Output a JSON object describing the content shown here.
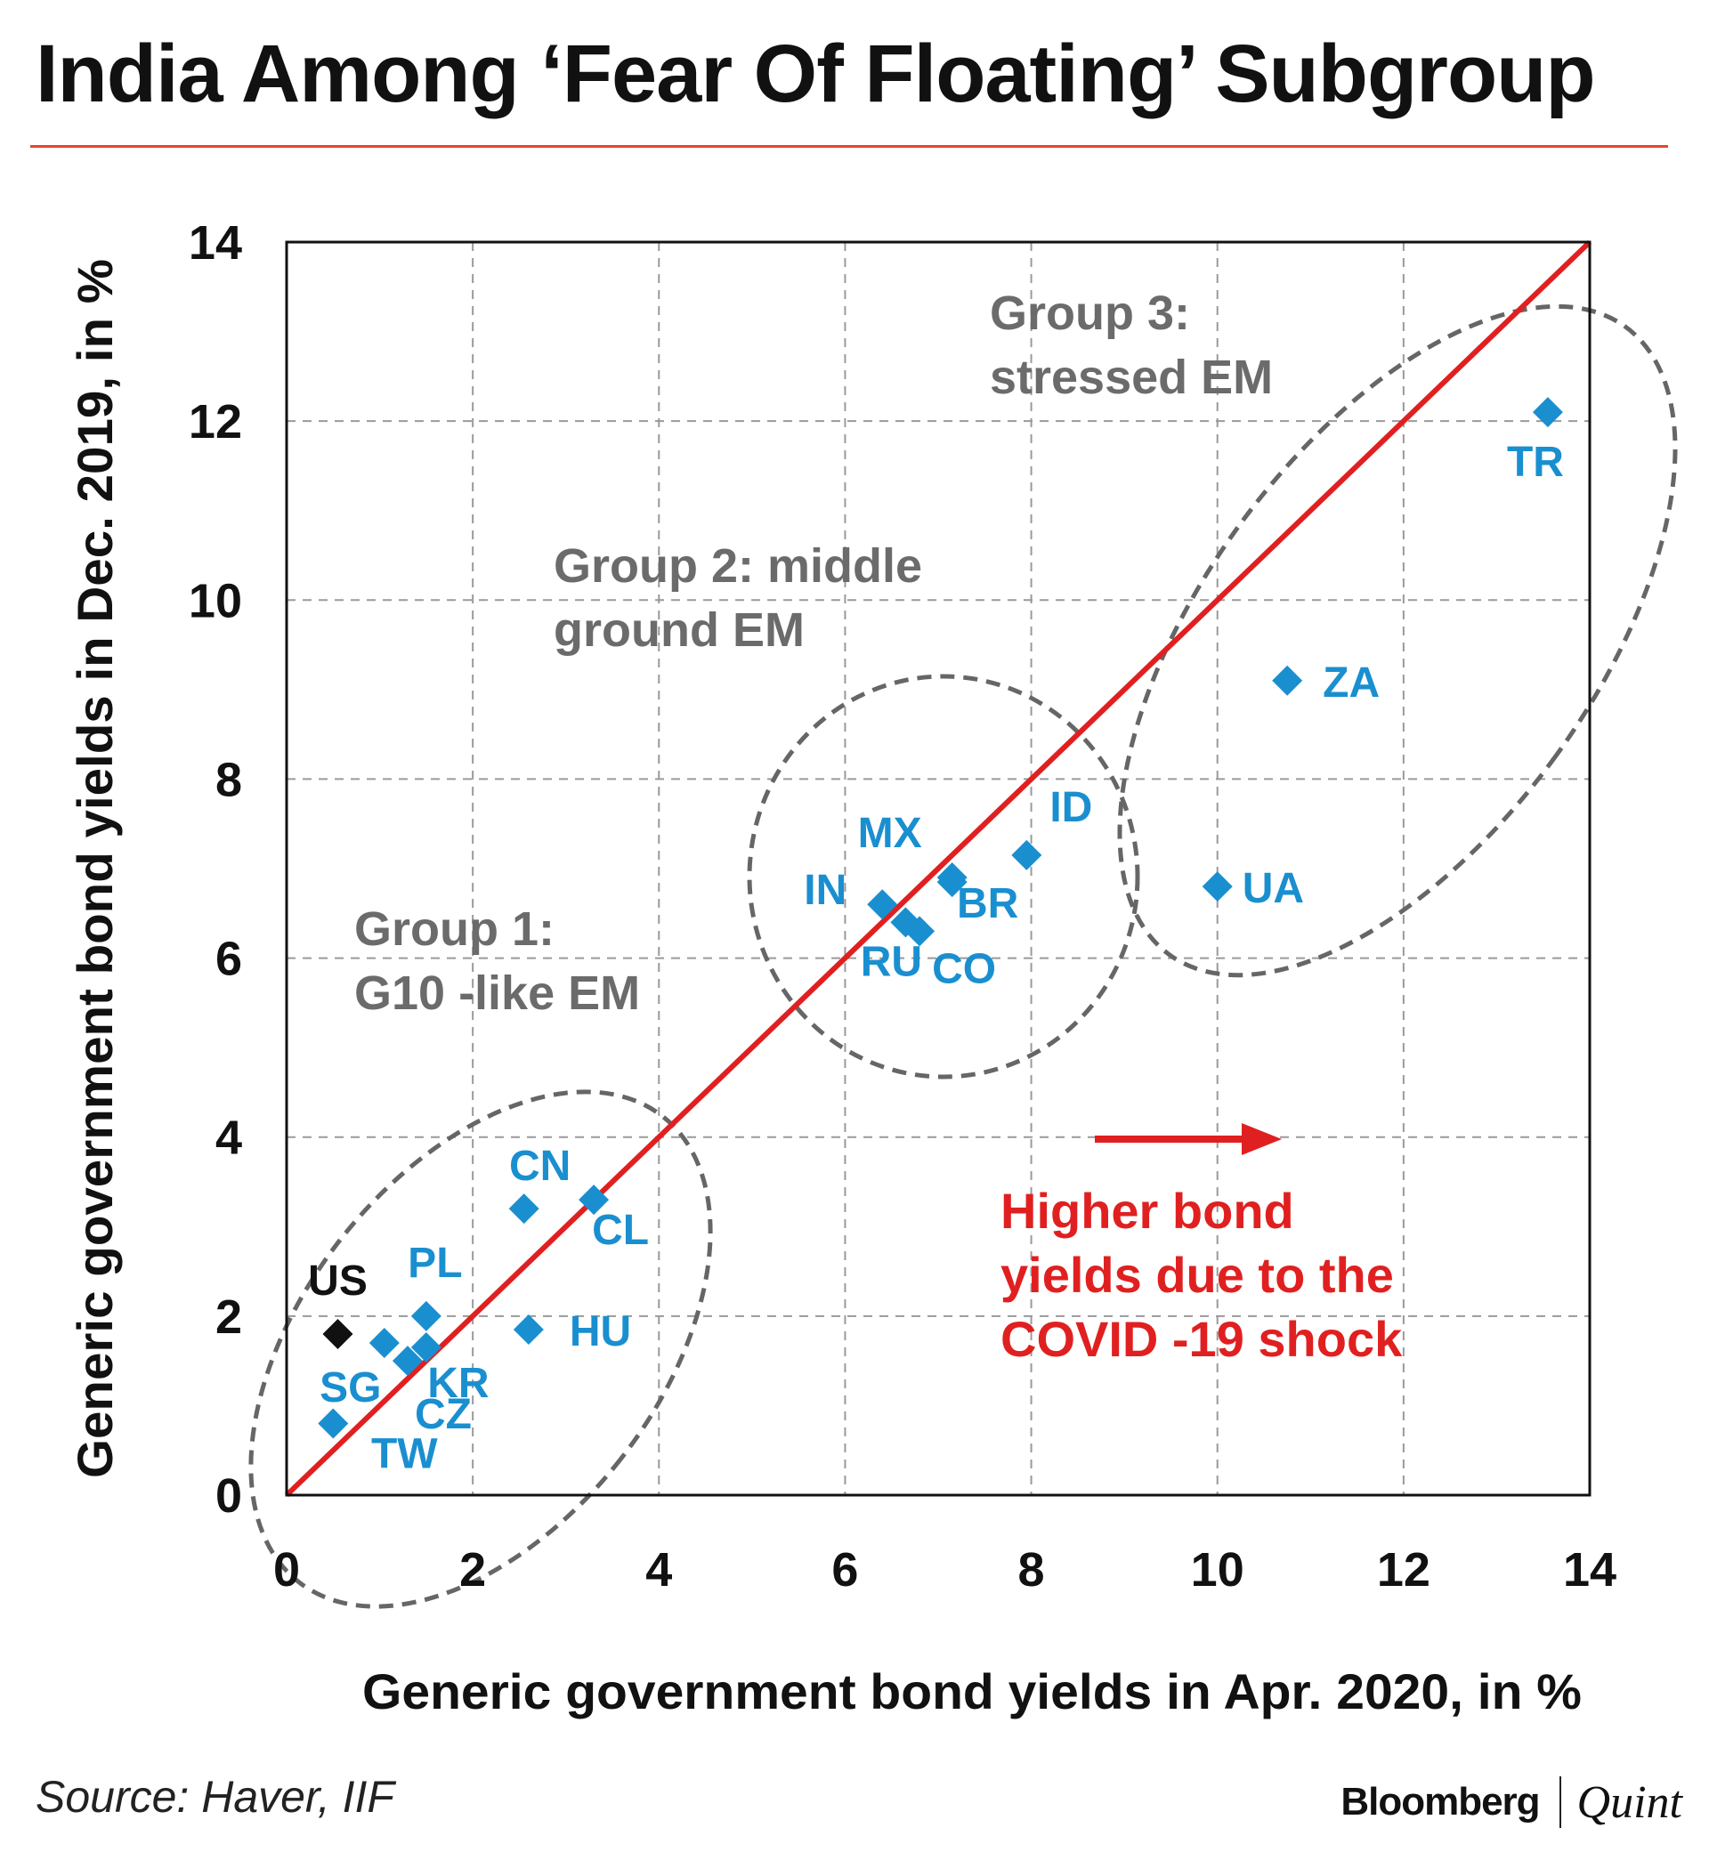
{
  "title": "India Among ‘Fear Of Floating’ Subgroup",
  "source": "Source: Haver, IIF",
  "brand": {
    "primary": "Bloomberg",
    "secondary": "Quint"
  },
  "colors": {
    "point": "#1a8fd0",
    "point_label": "#1a8fd0",
    "us_point": "#111111",
    "diagonal": "#e02020",
    "group_outline": "#666666",
    "group_label": "#6b6b6b",
    "annotation": "#e02020",
    "title_rule": "#e8432d"
  },
  "chart_data": {
    "type": "scatter",
    "title": "India Among ‘Fear Of Floating’ Subgroup",
    "xlabel": "Generic government bond yields in Apr. 2020, in %",
    "ylabel": "Generic government bond yields in Dec. 2019, in %",
    "xlim": [
      0,
      14
    ],
    "ylim": [
      0,
      14
    ],
    "xticks": [
      "0",
      "2",
      "4",
      "6",
      "8",
      "10",
      "12",
      "14"
    ],
    "yticks": [
      "0",
      "2",
      "4",
      "6",
      "8",
      "10",
      "12",
      "14"
    ],
    "grid": true,
    "reference_line": {
      "from": [
        0,
        0
      ],
      "to": [
        14,
        14
      ],
      "label": "45-degree line"
    },
    "points": [
      {
        "label": "US",
        "x": 0.55,
        "y": 1.8,
        "highlight": true
      },
      {
        "label": "SG",
        "x": 1.05,
        "y": 1.7
      },
      {
        "label": "KR",
        "x": 1.5,
        "y": 1.65
      },
      {
        "label": "CZ",
        "x": 1.3,
        "y": 1.5
      },
      {
        "label": "PL",
        "x": 1.5,
        "y": 2.0
      },
      {
        "label": "TW",
        "x": 0.5,
        "y": 0.8
      },
      {
        "label": "HU",
        "x": 2.6,
        "y": 1.85
      },
      {
        "label": "CN",
        "x": 2.55,
        "y": 3.2
      },
      {
        "label": "CL",
        "x": 3.3,
        "y": 3.3
      },
      {
        "label": "IN",
        "x": 6.4,
        "y": 6.6
      },
      {
        "label": "MX",
        "x": 7.15,
        "y": 6.9
      },
      {
        "label": "RU",
        "x": 6.65,
        "y": 6.4
      },
      {
        "label": "CO",
        "x": 6.8,
        "y": 6.3
      },
      {
        "label": "BR",
        "x": 7.15,
        "y": 6.85
      },
      {
        "label": "ID",
        "x": 7.95,
        "y": 7.15
      },
      {
        "label": "ZA",
        "x": 10.75,
        "y": 9.1
      },
      {
        "label": "UA",
        "x": 10.0,
        "y": 6.8
      },
      {
        "label": "TR",
        "x": 13.55,
        "y": 12.1
      }
    ],
    "groups": [
      {
        "name": "group-1",
        "label_lines": [
          "Group 1:",
          "G10 -like  EM"
        ]
      },
      {
        "name": "group-2",
        "label_lines": [
          "Group 2: middle",
          "ground EM"
        ]
      },
      {
        "name": "group-3",
        "label_lines": [
          "Group 3:",
          "stressed  EM"
        ]
      }
    ],
    "annotation": {
      "lines": [
        "Higher bond",
        "yields due to the",
        "COVID   -19 shock"
      ]
    }
  }
}
